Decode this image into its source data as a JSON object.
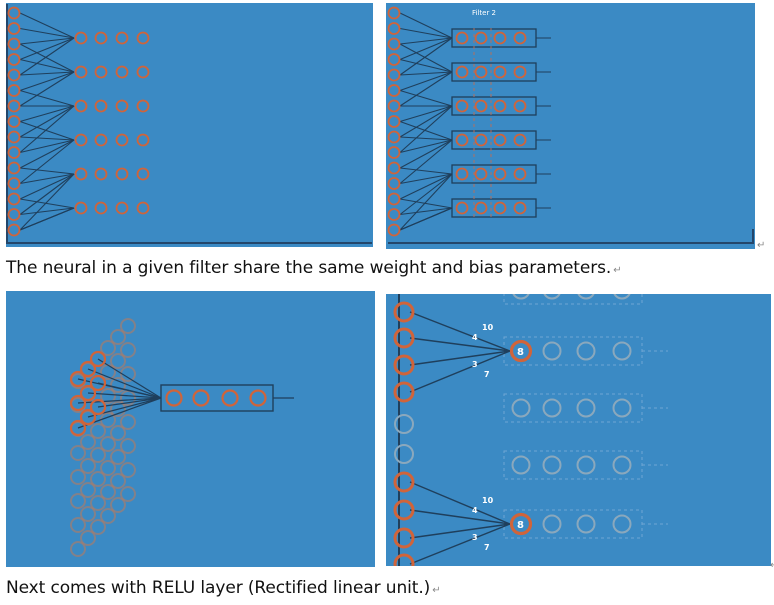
{
  "captions": {
    "first": "The neural in a given filter share the same weight and bias parameters.",
    "second": "Next comes with RELU layer (Rectified linear unit.)"
  },
  "paragraph_mark": "↵",
  "panel_2": {
    "label": "Filter 2"
  },
  "panel_4": {
    "groups": [
      {
        "weights": [
          "10",
          "4",
          "3",
          "7"
        ],
        "result": "8"
      },
      {
        "weights": [
          "10",
          "4",
          "3",
          "7"
        ],
        "result": "8"
      }
    ]
  },
  "colors": {
    "background": "#3b8ac4",
    "neuron": "#d0643a",
    "neuron_muted": "#c07a5a",
    "line": "#1f3f5c",
    "frame": "#24466a",
    "text_light": "#ffffff"
  }
}
